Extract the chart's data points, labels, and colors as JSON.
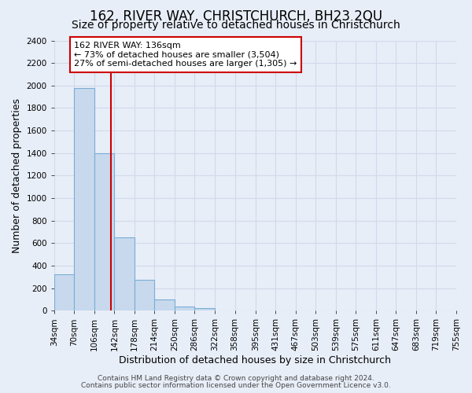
{
  "title": "162, RIVER WAY, CHRISTCHURCH, BH23 2QU",
  "subtitle": "Size of property relative to detached houses in Christchurch",
  "xlabel": "Distribution of detached houses by size in Christchurch",
  "ylabel": "Number of detached properties",
  "bar_left_edges": [
    34,
    70,
    106,
    142,
    178,
    214,
    250,
    286,
    322,
    358,
    395,
    431,
    467,
    503,
    539,
    575,
    611,
    647,
    683,
    719
  ],
  "bar_heights": [
    325,
    1975,
    1400,
    650,
    275,
    100,
    40,
    20,
    0,
    0,
    0,
    0,
    0,
    0,
    0,
    0,
    0,
    0,
    0,
    0
  ],
  "bin_width": 36,
  "xtick_labels": [
    "34sqm",
    "70sqm",
    "106sqm",
    "142sqm",
    "178sqm",
    "214sqm",
    "250sqm",
    "286sqm",
    "322sqm",
    "358sqm",
    "395sqm",
    "431sqm",
    "467sqm",
    "503sqm",
    "539sqm",
    "575sqm",
    "611sqm",
    "647sqm",
    "683sqm",
    "719sqm",
    "755sqm"
  ],
  "bar_color": "#c8d9ee",
  "bar_edge_color": "#7aadd4",
  "vline_x": 136,
  "vline_color": "#cc0000",
  "ylim": [
    0,
    2400
  ],
  "yticks": [
    0,
    200,
    400,
    600,
    800,
    1000,
    1200,
    1400,
    1600,
    1800,
    2000,
    2200,
    2400
  ],
  "annotation_text": "162 RIVER WAY: 136sqm\n← 73% of detached houses are smaller (3,504)\n27% of semi-detached houses are larger (1,305) →",
  "annotation_box_color": "#ffffff",
  "annotation_box_edge": "#cc0000",
  "footer_line1": "Contains HM Land Registry data © Crown copyright and database right 2024.",
  "footer_line2": "Contains public sector information licensed under the Open Government Licence v3.0.",
  "background_color": "#e8eef8",
  "grid_color": "#d0daea",
  "title_fontsize": 12,
  "subtitle_fontsize": 10,
  "axis_label_fontsize": 9,
  "tick_fontsize": 7.5,
  "annotation_fontsize": 8,
  "footer_fontsize": 6.5,
  "xlim_left": 34,
  "xlim_right": 755
}
